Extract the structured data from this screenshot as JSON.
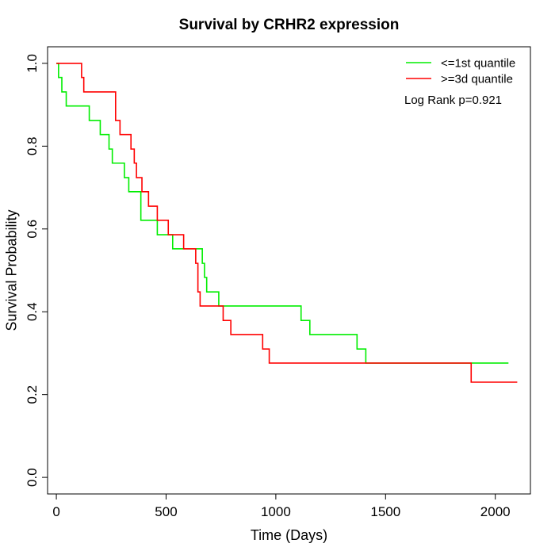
{
  "chart_data": {
    "type": "line",
    "title": "Survival by CRHR2 expression",
    "xlabel": "Time (Days)",
    "ylabel": "Survival Probability",
    "xlim": [
      -40,
      2160
    ],
    "ylim": [
      -0.04,
      1.04
    ],
    "xticks": [
      0,
      500,
      1000,
      1500,
      2000
    ],
    "yticks": [
      0.0,
      0.2,
      0.4,
      0.6,
      0.8,
      1.0
    ],
    "xtick_labels": [
      "0",
      "500",
      "1000",
      "1500",
      "2000"
    ],
    "ytick_labels": [
      "0.0",
      "0.2",
      "0.4",
      "0.6",
      "0.8",
      "1.0"
    ],
    "grid": false,
    "legend_position": "top-right",
    "annotation": "Log Rank p=0.921",
    "series": [
      {
        "name": "<=1st quantile",
        "color": "#00ee00",
        "x": [
          0,
          10,
          25,
          45,
          150,
          200,
          240,
          255,
          310,
          330,
          385,
          460,
          530,
          665,
          675,
          685,
          700,
          740,
          1115,
          1155,
          1370,
          1410,
          2060
        ],
        "y": [
          1.0,
          0.966,
          0.931,
          0.897,
          0.862,
          0.828,
          0.793,
          0.759,
          0.724,
          0.69,
          0.621,
          0.586,
          0.552,
          0.517,
          0.483,
          0.448,
          0.448,
          0.414,
          0.379,
          0.345,
          0.31,
          0.276,
          0.276
        ]
      },
      {
        "name": ">=3d quantile",
        "color": "#ff0000",
        "x": [
          0,
          115,
          125,
          270,
          278,
          290,
          340,
          355,
          365,
          390,
          420,
          460,
          510,
          580,
          635,
          645,
          655,
          760,
          795,
          940,
          970,
          1890,
          2100
        ],
        "y": [
          1.0,
          0.966,
          0.931,
          0.862,
          0.862,
          0.828,
          0.793,
          0.759,
          0.724,
          0.69,
          0.655,
          0.621,
          0.586,
          0.552,
          0.517,
          0.448,
          0.414,
          0.379,
          0.345,
          0.31,
          0.276,
          0.23,
          0.23
        ]
      }
    ]
  }
}
